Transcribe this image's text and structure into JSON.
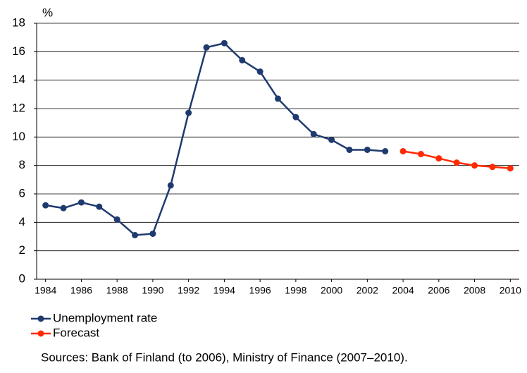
{
  "chart_data": {
    "type": "line",
    "y_unit": "%",
    "source": "Sources: Bank of Finland (to 2006), Ministry of Finance (2007–2010).",
    "series": [
      {
        "name": "Unemployment rate",
        "color": "#1f3a6e",
        "x": [
          1984,
          1985,
          1986,
          1987,
          1988,
          1989,
          1990,
          1991,
          1992,
          1993,
          1994,
          1995,
          1996,
          1997,
          1998,
          1999,
          2000,
          2001,
          2002,
          2003
        ],
        "values": [
          5.2,
          5.0,
          5.4,
          5.1,
          4.2,
          3.1,
          3.2,
          6.6,
          11.7,
          16.3,
          16.6,
          15.4,
          14.6,
          12.7,
          11.4,
          10.2,
          9.8,
          9.1,
          9.1,
          9.0
        ]
      },
      {
        "name": "Forecast",
        "color": "#ff2a00",
        "x": [
          2004,
          2005,
          2006,
          2007,
          2008,
          2009,
          2010
        ],
        "values": [
          9.0,
          8.8,
          8.5,
          8.2,
          8.0,
          7.9,
          7.8
        ]
      }
    ],
    "xlim": [
      1983.5,
      2010.5
    ],
    "xticks": [
      1984,
      1986,
      1988,
      1990,
      1992,
      1994,
      1996,
      1998,
      2000,
      2002,
      2004,
      2006,
      2008,
      2010
    ],
    "ylim": [
      0,
      18
    ],
    "yticks": [
      0,
      2,
      4,
      6,
      8,
      10,
      12,
      14,
      16,
      18
    ],
    "grid": true,
    "legend": "bottom"
  }
}
